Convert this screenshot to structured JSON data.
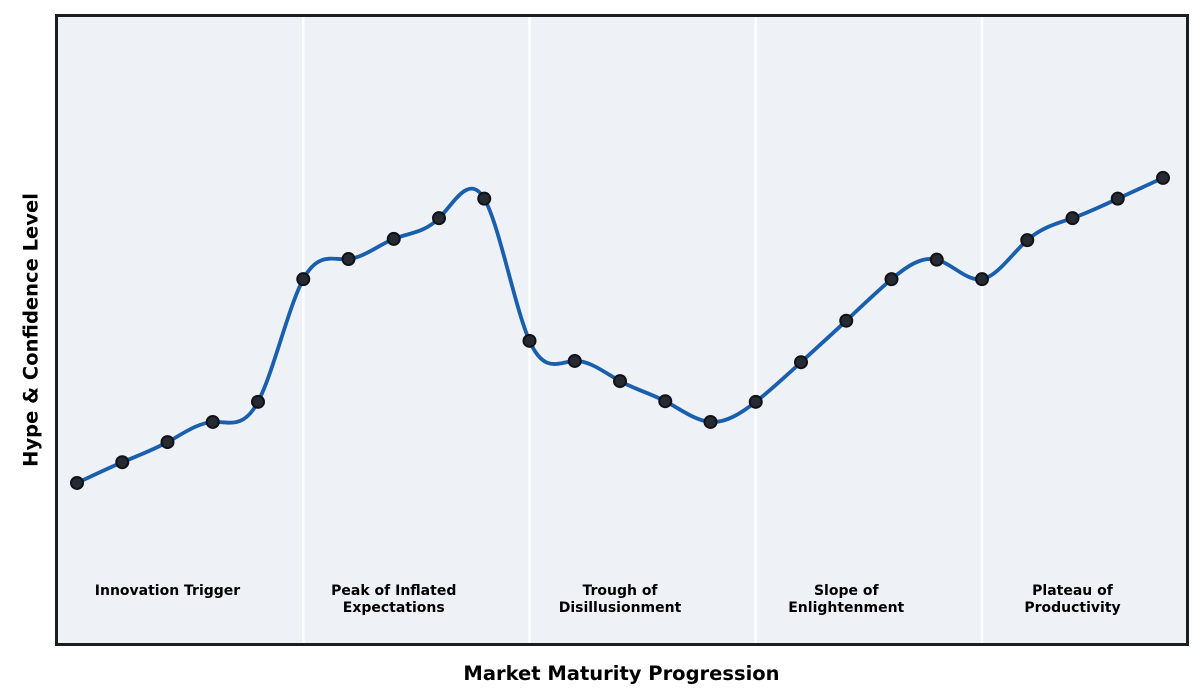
{
  "chart_data": {
    "type": "line",
    "smooth": true,
    "x": [
      0,
      1,
      2,
      3,
      4,
      5,
      6,
      7,
      8,
      9,
      10,
      11,
      12,
      13,
      14,
      15,
      16,
      17,
      18,
      19,
      20,
      21,
      22,
      23,
      24
    ],
    "series": [
      {
        "name": "Hype",
        "values": [
          25.6,
          28.9,
          32.1,
          35.3,
          38.5,
          58.0,
          61.2,
          64.4,
          67.7,
          70.8,
          48.2,
          45.0,
          41.8,
          38.6,
          35.3,
          38.5,
          44.8,
          51.4,
          58.0,
          61.1,
          58.0,
          64.2,
          67.7,
          70.8,
          74.1
        ]
      }
    ],
    "xlabel": "Market Maturity Progression",
    "ylabel": "Hype & Confidence Level",
    "ylim": [
      0,
      100
    ],
    "xlim": [
      -0.45,
      24.52
    ],
    "grid": false,
    "legend": false,
    "phases": [
      {
        "lines": [
          "Innovation Trigger"
        ],
        "center_x": 2
      },
      {
        "lines": [
          "Peak of Inflated",
          "Expectations"
        ],
        "center_x": 7
      },
      {
        "lines": [
          "Trough of",
          "Disillusionment"
        ],
        "center_x": 12
      },
      {
        "lines": [
          "Slope of",
          "Enlightenment"
        ],
        "center_x": 17
      },
      {
        "lines": [
          "Plateau of",
          "Productivity"
        ],
        "center_x": 22
      }
    ],
    "phase_boundaries_x": [
      5,
      10,
      15,
      20
    ],
    "colors": {
      "line": "#1a5fad",
      "marker_fill": "#262b33",
      "marker_edge": "#101216",
      "plot_bg": "#eef2f7",
      "divider": "#ffffff",
      "border": "#1a1d22",
      "text": "#000000",
      "figure_bg": "#ffffff"
    }
  }
}
